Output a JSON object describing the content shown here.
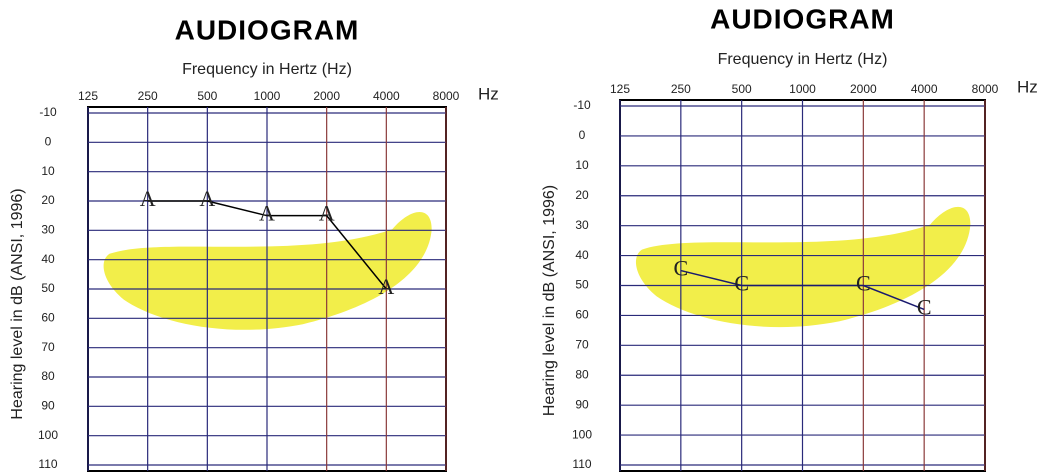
{
  "chart_data": [
    {
      "type": "line",
      "title": "AUDIOGRAM",
      "xlabel": "Frequency in Hertz (Hz)",
      "xunit": "Hz",
      "ylabel": "Hearing level in dB (ANSI, 1996)",
      "log_x": true,
      "y_inverted": true,
      "grid": true,
      "x": [
        250,
        500,
        1000,
        2000,
        4000
      ],
      "series": [
        {
          "marker": "A",
          "color": "#000000",
          "values": [
            20,
            20,
            25,
            25,
            50
          ]
        }
      ],
      "xlim": [
        125,
        8000
      ],
      "xticks": [
        125,
        250,
        500,
        1000,
        2000,
        4000,
        8000
      ],
      "ylim": [
        -10,
        110
      ],
      "yticks": [
        -10,
        0,
        10,
        20,
        30,
        40,
        50,
        60,
        70,
        80,
        90,
        100,
        110
      ]
    },
    {
      "type": "line",
      "title": "AUDIOGRAM",
      "xlabel": "Frequency in Hertz (Hz)",
      "xunit": "Hz",
      "ylabel": "Hearing level in dB (ANSI, 1996)",
      "log_x": true,
      "y_inverted": true,
      "grid": true,
      "x": [
        250,
        500,
        2000,
        4000
      ],
      "series": [
        {
          "marker": "C",
          "color": "#1a1a6e",
          "values": [
            45,
            50,
            50,
            58
          ]
        }
      ],
      "xlim": [
        125,
        8000
      ],
      "xticks": [
        125,
        250,
        500,
        1000,
        2000,
        4000,
        8000
      ],
      "ylim": [
        -10,
        110
      ],
      "yticks": [
        -10,
        0,
        10,
        20,
        30,
        40,
        50,
        60,
        70,
        80,
        90,
        100,
        110
      ]
    }
  ]
}
